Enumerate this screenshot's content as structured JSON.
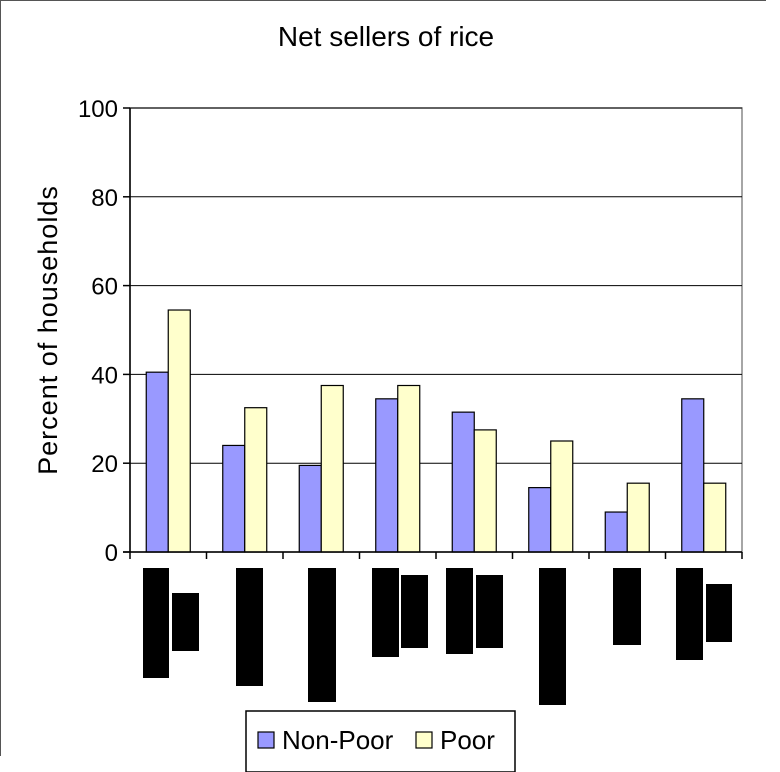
{
  "chart_data": {
    "type": "bar",
    "title": "Net sellers of rice",
    "ylabel": "Percent of households",
    "xlabel": "",
    "ylim": [
      0,
      100
    ],
    "yticks": [
      0,
      20,
      40,
      60,
      80,
      100
    ],
    "grid": true,
    "legend_position": "bottom",
    "categories": [
      "",
      "",
      "",
      "",
      "",
      "",
      "",
      ""
    ],
    "series": [
      {
        "name": "Non-Poor",
        "color": "#9999ff",
        "values": [
          40.5,
          24,
          19.5,
          34.5,
          31.5,
          14.5,
          9,
          34.5
        ]
      },
      {
        "name": "Poor",
        "color": "#ffffcc",
        "values": [
          54.5,
          32.5,
          37.5,
          37.5,
          27.5,
          25,
          15.5,
          15.5
        ]
      }
    ],
    "redactions": [
      "black-box",
      "black-box",
      "black-box",
      "black-box",
      "black-box",
      "black-box",
      "black-box",
      "black-box"
    ]
  }
}
